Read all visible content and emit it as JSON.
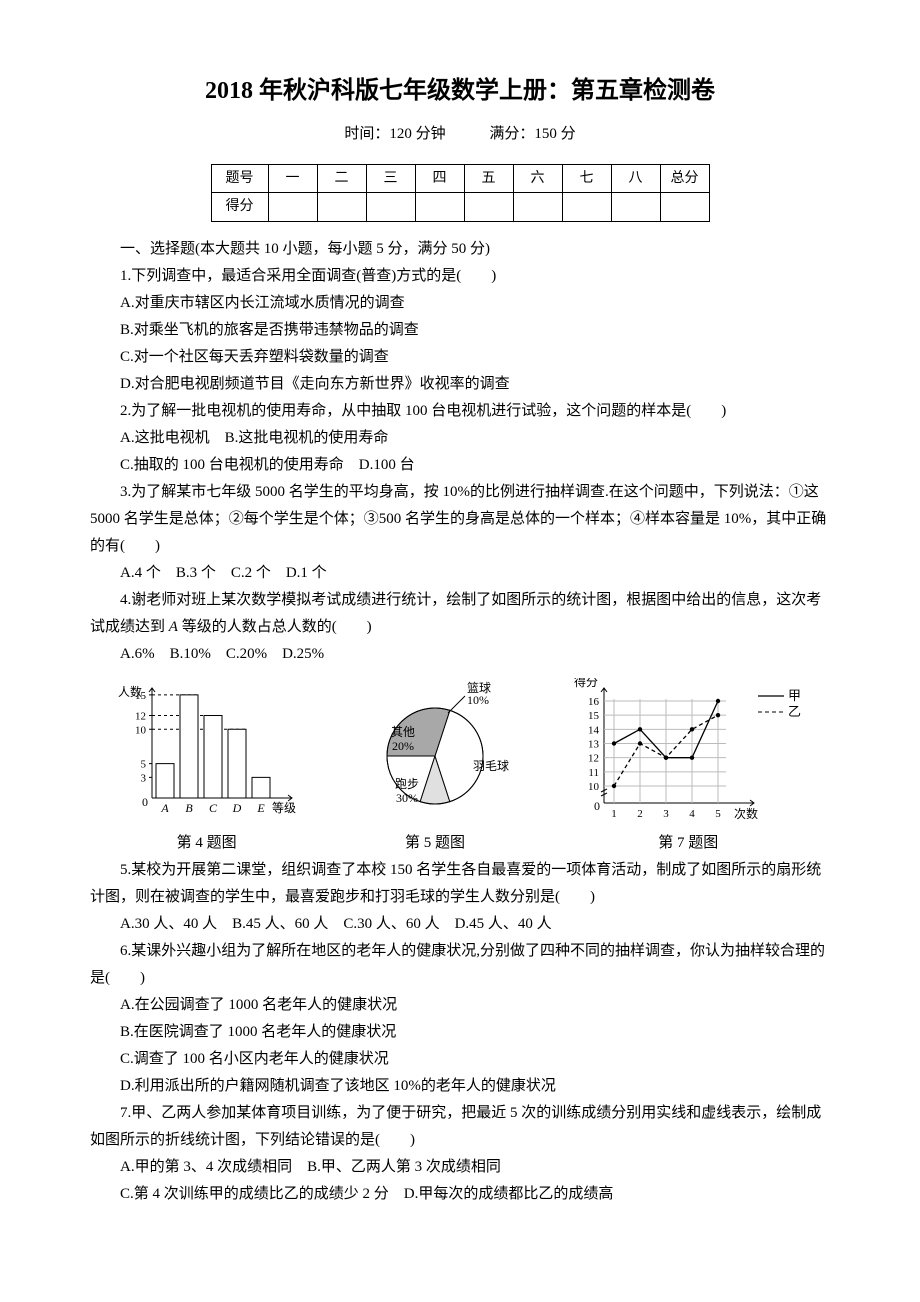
{
  "title": "2018 年秋沪科版七年级数学上册：第五章检测卷",
  "subtitle": {
    "time": "时间：120 分钟",
    "full": "满分：150 分"
  },
  "score_table": {
    "row1": [
      "题号",
      "一",
      "二",
      "三",
      "四",
      "五",
      "六",
      "七",
      "八",
      "总分"
    ],
    "row2_label": "得分"
  },
  "section1_title": "一、选择题(本大题共 10 小题，每小题 5 分，满分 50 分)",
  "q1": {
    "stem": "1.下列调查中，最适合采用全面调查(普查)方式的是(　　)",
    "A": "A.对重庆市辖区内长江流域水质情况的调查",
    "B": "B.对乘坐飞机的旅客是否携带违禁物品的调查",
    "C": "C.对一个社区每天丢弃塑料袋数量的调查",
    "D": "D.对合肥电视剧频道节目《走向东方新世界》收视率的调查"
  },
  "q2": {
    "stem": "2.为了解一批电视机的使用寿命，从中抽取 100 台电视机进行试验，这个问题的样本是(　　)",
    "line1": "A.这批电视机　B.这批电视机的使用寿命",
    "line2": "C.抽取的 100 台电视机的使用寿命　D.100 台"
  },
  "q3": {
    "stem": "3.为了解某市七年级 5000 名学生的平均身高，按 10%的比例进行抽样调查.在这个问题中，下列说法：①这 5000 名学生是总体；②每个学生是个体；③500 名学生的身高是总体的一个样本；④样本容量是 10%，其中正确的有(　　)",
    "opts": "A.4 个　B.3 个　C.2 个　D.1 个"
  },
  "q4": {
    "stem_a": "4.谢老师对班上某次数学模拟考试成绩进行统计，绘制了如图所示的统计图，根据图中给出的信息，这次考试成绩达到 ",
    "stem_b": " 等级的人数占总人数的(　　)",
    "A_italic": "A",
    "opts": "A.6%　B.10%　C.20%　D.25%"
  },
  "q5": {
    "stem": "5.某校为开展第二课堂，组织调查了本校 150 名学生各自最喜爱的一项体育活动，制成了如图所示的扇形统计图，则在被调查的学生中，最喜爱跑步和打羽毛球的学生人数分别是(　　)",
    "opts": "A.30 人、40 人　B.45 人、60 人　C.30 人、60 人　D.45 人、40 人"
  },
  "q6": {
    "stem": "6.某课外兴趣小组为了解所在地区的老年人的健康状况,分别做了四种不同的抽样调查，你认为抽样较合理的是(　　)",
    "A": "A.在公园调查了 1000 名老年人的健康状况",
    "B": "B.在医院调查了 1000 名老年人的健康状况",
    "C": "C.调查了 100 名小区内老年人的健康状况",
    "D": "D.利用派出所的户籍网随机调查了该地区 10%的老年人的健康状况"
  },
  "q7": {
    "stem": "7.甲、乙两人参加某体育项目训练，为了便于研究，把最近 5 次的训练成绩分别用实线和虚线表示，绘制成如图所示的折线统计图，下列结论错误的是(　　)",
    "line1": "A.甲的第 3、4 次成绩相同　B.甲、乙两人第 3 次成绩相同",
    "line2": "C.第 4 次训练甲的成绩比乙的成绩少 2 分　D.甲每次的成绩都比乙的成绩高"
  },
  "figs": {
    "cap4": "第 4 题图",
    "cap5": "第 5 题图",
    "cap7": "第 7 题图",
    "bar": {
      "y_label": "人数",
      "x_label": "等级",
      "y_ticks": [
        15,
        12,
        10,
        5,
        3
      ],
      "categories": [
        "A",
        "B",
        "C",
        "D",
        "E"
      ],
      "values": [
        5,
        15,
        12,
        10,
        3
      ],
      "color": "#000"
    },
    "pie": {
      "slices": [
        {
          "label": "其他",
          "pct": "20%",
          "start": 180,
          "end": 252,
          "color": "#fff"
        },
        {
          "label": "篮球",
          "pct": "10%",
          "start": 252,
          "end": 288,
          "color": "#e0e0e0"
        },
        {
          "label": "羽毛球",
          "pct": "",
          "start": 288,
          "end": 72,
          "color": "#fff"
        },
        {
          "label": "跑步",
          "pct": "30%",
          "start": 72,
          "end": 180,
          "color": "#a8a8a8"
        }
      ]
    },
    "line": {
      "y_label": "得分",
      "x_label": "次数",
      "legend": {
        "jia": "甲",
        "yi": "乙"
      },
      "y_ticks": [
        16,
        15,
        14,
        13,
        12,
        11,
        10,
        0
      ],
      "x_ticks": [
        1,
        2,
        3,
        4,
        5
      ],
      "jia": [
        13,
        14,
        12,
        12,
        16
      ],
      "yi": [
        10,
        13,
        12,
        14,
        15
      ]
    }
  }
}
